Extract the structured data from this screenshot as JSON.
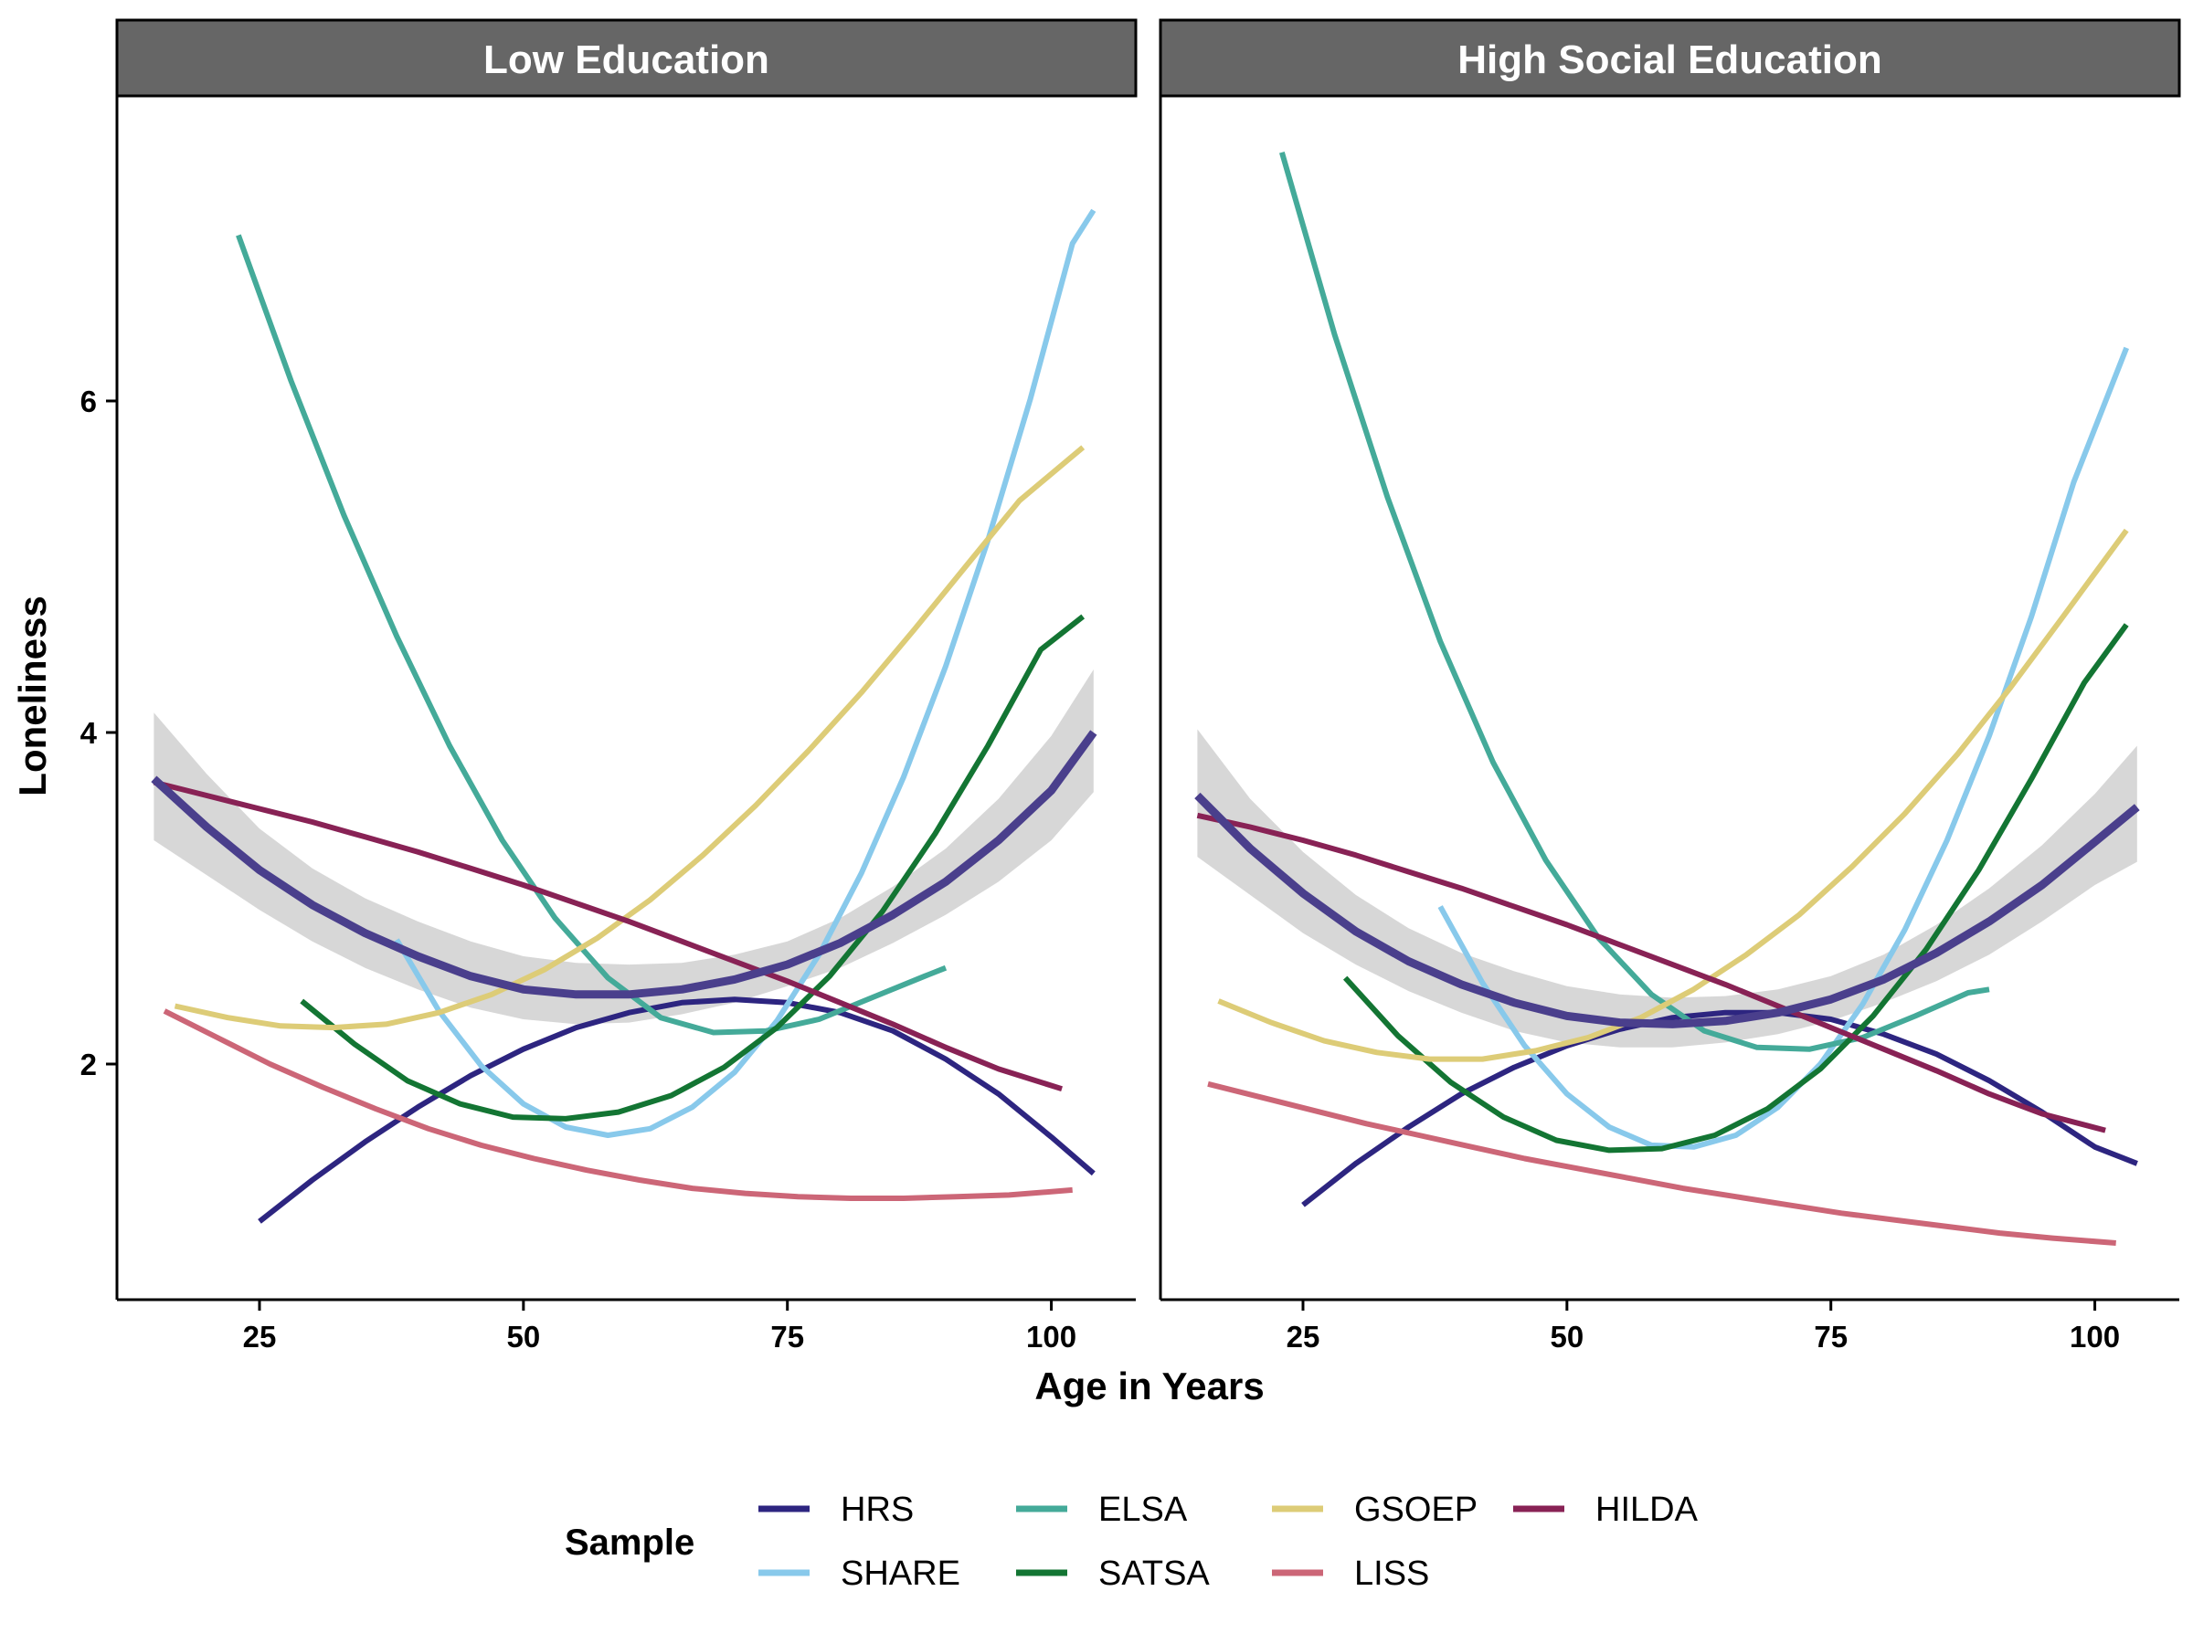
{
  "chart_data": {
    "type": "line",
    "panels": [
      {
        "title": "Low Education",
        "series": [
          {
            "name": "HRS",
            "x": [
              25,
              30,
              35,
              40,
              45,
              50,
              55,
              60,
              65,
              70,
              75,
              80,
              85,
              90,
              95,
              100,
              104
            ],
            "y": [
              1.05,
              1.3,
              1.53,
              1.74,
              1.93,
              2.09,
              2.22,
              2.31,
              2.37,
              2.39,
              2.37,
              2.31,
              2.2,
              2.03,
              1.82,
              1.56,
              1.34
            ]
          },
          {
            "name": "SHARE",
            "x": [
              38,
              42,
              46,
              50,
              54,
              58,
              62,
              66,
              70,
              74,
              78,
              82,
              86,
              90,
              94,
              98,
              102,
              104
            ],
            "y": [
              2.75,
              2.32,
              1.99,
              1.76,
              1.62,
              1.57,
              1.61,
              1.74,
              1.95,
              2.26,
              2.66,
              3.15,
              3.73,
              4.4,
              5.16,
              6.01,
              6.95,
              7.15
            ]
          },
          {
            "name": "ELSA",
            "x": [
              23,
              28,
              33,
              38,
              43,
              48,
              53,
              58,
              63,
              68,
              73,
              78,
              83,
              88,
              90
            ],
            "y": [
              7.0,
              6.12,
              5.31,
              4.58,
              3.92,
              3.35,
              2.88,
              2.52,
              2.28,
              2.19,
              2.2,
              2.27,
              2.4,
              2.53,
              2.58
            ]
          },
          {
            "name": "SATSA",
            "x": [
              29,
              34,
              39,
              44,
              49,
              54,
              59,
              64,
              69,
              74,
              79,
              84,
              89,
              94,
              99,
              103
            ],
            "y": [
              2.38,
              2.12,
              1.9,
              1.76,
              1.68,
              1.67,
              1.71,
              1.81,
              1.98,
              2.22,
              2.53,
              2.92,
              3.39,
              3.92,
              4.5,
              4.7
            ]
          },
          {
            "name": "GSOEP",
            "x": [
              17,
              22,
              27,
              32,
              37,
              42,
              47,
              52,
              57,
              62,
              67,
              72,
              77,
              82,
              87,
              92,
              97,
              103
            ],
            "y": [
              2.35,
              2.28,
              2.23,
              2.22,
              2.24,
              2.31,
              2.42,
              2.57,
              2.76,
              2.99,
              3.26,
              3.56,
              3.89,
              4.24,
              4.62,
              5.01,
              5.4,
              5.72
            ]
          },
          {
            "name": "LISS",
            "x": [
              16,
              21,
              26,
              31,
              36,
              41,
              46,
              51,
              56,
              61,
              66,
              71,
              76,
              81,
              86,
              91,
              96,
              102
            ],
            "y": [
              2.32,
              2.16,
              2.0,
              1.86,
              1.73,
              1.61,
              1.51,
              1.43,
              1.36,
              1.3,
              1.25,
              1.22,
              1.2,
              1.19,
              1.19,
              1.2,
              1.21,
              1.24
            ]
          },
          {
            "name": "HILDA",
            "x": [
              15,
              20,
              25,
              30,
              35,
              40,
              45,
              50,
              55,
              60,
              65,
              70,
              75,
              80,
              85,
              90,
              95,
              101
            ],
            "y": [
              3.7,
              3.62,
              3.54,
              3.46,
              3.37,
              3.28,
              3.18,
              3.08,
              2.97,
              2.86,
              2.74,
              2.62,
              2.5,
              2.37,
              2.24,
              2.1,
              1.97,
              1.85
            ]
          }
        ],
        "mean": {
          "x": [
            15,
            20,
            25,
            30,
            35,
            40,
            45,
            50,
            55,
            60,
            65,
            70,
            75,
            80,
            85,
            90,
            95,
            100,
            104
          ],
          "y": [
            3.72,
            3.43,
            3.17,
            2.96,
            2.79,
            2.65,
            2.53,
            2.45,
            2.42,
            2.42,
            2.45,
            2.51,
            2.6,
            2.73,
            2.9,
            3.1,
            3.35,
            3.65,
            4.0
          ],
          "lower": [
            3.35,
            3.14,
            2.93,
            2.74,
            2.58,
            2.45,
            2.34,
            2.27,
            2.24,
            2.25,
            2.3,
            2.37,
            2.47,
            2.58,
            2.73,
            2.9,
            3.1,
            3.35,
            3.64
          ],
          "upper": [
            4.12,
            3.75,
            3.42,
            3.18,
            3.0,
            2.86,
            2.74,
            2.65,
            2.61,
            2.6,
            2.61,
            2.66,
            2.74,
            2.88,
            3.07,
            3.3,
            3.6,
            3.98,
            4.38
          ]
        }
      },
      {
        "title": "High Social Education",
        "series": [
          {
            "name": "HRS",
            "x": [
              25,
              30,
              35,
              40,
              45,
              50,
              55,
              60,
              65,
              70,
              75,
              80,
              85,
              90,
              95,
              100,
              104
            ],
            "y": [
              1.15,
              1.4,
              1.62,
              1.82,
              1.98,
              2.11,
              2.21,
              2.28,
              2.31,
              2.31,
              2.27,
              2.18,
              2.06,
              1.9,
              1.71,
              1.5,
              1.4
            ]
          },
          {
            "name": "SHARE",
            "x": [
              38,
              42,
              46,
              50,
              54,
              58,
              62,
              66,
              70,
              74,
              78,
              82,
              86,
              90,
              94,
              98,
              103
            ],
            "y": [
              2.95,
              2.49,
              2.11,
              1.82,
              1.62,
              1.51,
              1.5,
              1.57,
              1.74,
              2.0,
              2.36,
              2.81,
              3.35,
              3.98,
              4.7,
              5.51,
              6.32
            ]
          },
          {
            "name": "ELSA",
            "x": [
              23,
              28,
              33,
              38,
              43,
              48,
              53,
              58,
              63,
              68,
              73,
              78,
              83,
              88,
              90
            ],
            "y": [
              7.5,
              6.4,
              5.42,
              4.55,
              3.82,
              3.23,
              2.76,
              2.42,
              2.2,
              2.1,
              2.09,
              2.16,
              2.29,
              2.43,
              2.45
            ]
          },
          {
            "name": "SATSA",
            "x": [
              29,
              34,
              39,
              44,
              49,
              54,
              59,
              64,
              69,
              74,
              79,
              84,
              89,
              94,
              99,
              103
            ],
            "y": [
              2.52,
              2.17,
              1.89,
              1.68,
              1.54,
              1.48,
              1.49,
              1.57,
              1.73,
              1.97,
              2.29,
              2.69,
              3.17,
              3.72,
              4.3,
              4.65
            ]
          },
          {
            "name": "GSOEP",
            "x": [
              17,
              22,
              27,
              32,
              37,
              42,
              47,
              52,
              57,
              62,
              67,
              72,
              77,
              82,
              87,
              92,
              97,
              103
            ],
            "y": [
              2.38,
              2.25,
              2.14,
              2.07,
              2.03,
              2.03,
              2.08,
              2.16,
              2.28,
              2.45,
              2.66,
              2.9,
              3.19,
              3.51,
              3.87,
              4.27,
              4.7,
              5.22
            ]
          },
          {
            "name": "LISS",
            "x": [
              16,
              21,
              26,
              31,
              36,
              41,
              46,
              51,
              56,
              61,
              66,
              71,
              76,
              81,
              86,
              91,
              96,
              102
            ],
            "y": [
              1.88,
              1.8,
              1.72,
              1.64,
              1.57,
              1.5,
              1.43,
              1.37,
              1.31,
              1.25,
              1.2,
              1.15,
              1.1,
              1.06,
              1.02,
              0.98,
              0.95,
              0.92
            ]
          },
          {
            "name": "HILDA",
            "x": [
              15,
              20,
              25,
              30,
              35,
              40,
              45,
              50,
              55,
              60,
              65,
              70,
              75,
              80,
              85,
              90,
              95,
              101
            ],
            "y": [
              3.5,
              3.43,
              3.35,
              3.26,
              3.16,
              3.06,
              2.95,
              2.84,
              2.72,
              2.6,
              2.48,
              2.35,
              2.22,
              2.09,
              1.96,
              1.82,
              1.7,
              1.6
            ]
          }
        ],
        "mean": {
          "x": [
            15,
            20,
            25,
            30,
            35,
            40,
            45,
            50,
            55,
            60,
            65,
            70,
            75,
            80,
            85,
            90,
            95,
            100,
            104
          ],
          "y": [
            3.62,
            3.3,
            3.03,
            2.8,
            2.62,
            2.48,
            2.37,
            2.29,
            2.25,
            2.24,
            2.26,
            2.31,
            2.39,
            2.51,
            2.67,
            2.86,
            3.08,
            3.34,
            3.55
          ],
          "lower": [
            3.25,
            3.02,
            2.79,
            2.6,
            2.44,
            2.31,
            2.2,
            2.13,
            2.1,
            2.1,
            2.13,
            2.18,
            2.26,
            2.37,
            2.5,
            2.66,
            2.86,
            3.08,
            3.22
          ],
          "upper": [
            4.02,
            3.6,
            3.28,
            3.02,
            2.82,
            2.67,
            2.56,
            2.47,
            2.42,
            2.4,
            2.41,
            2.45,
            2.53,
            2.66,
            2.84,
            3.06,
            3.32,
            3.63,
            3.92
          ]
        }
      }
    ],
    "xlabel": "Age in Years",
    "ylabel": "Loneliness",
    "xlim": [
      11.5,
      108
    ],
    "ylim": [
      0.6,
      7.7
    ],
    "xticks": [
      25,
      50,
      75,
      100
    ],
    "yticks": [
      2,
      4,
      6
    ],
    "grid": false,
    "legend": {
      "title": "Sample",
      "placement": "bottom",
      "entries": [
        {
          "name": "HRS",
          "color": "#2d2580"
        },
        {
          "name": "SHARE",
          "color": "#88c9eb"
        },
        {
          "name": "ELSA",
          "color": "#44aa99"
        },
        {
          "name": "SATSA",
          "color": "#137533"
        },
        {
          "name": "GSOEP",
          "color": "#ddcc77"
        },
        {
          "name": "LISS",
          "color": "#cc6677"
        },
        {
          "name": "HILDA",
          "color": "#882255"
        }
      ]
    },
    "colors": {
      "HRS": "#2d2580",
      "SHARE": "#88c9eb",
      "ELSA": "#44aa99",
      "SATSA": "#137533",
      "GSOEP": "#ddcc77",
      "LISS": "#cc6677",
      "HILDA": "#882255",
      "mean_line": "#4a3f8c",
      "ribbon": "#d3d3d3",
      "strip": "#666666"
    }
  }
}
